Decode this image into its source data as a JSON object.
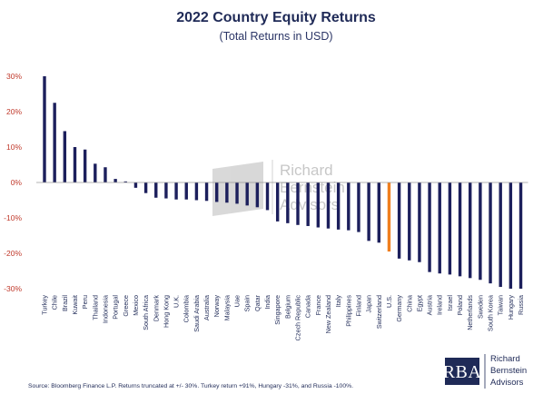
{
  "chart_data": {
    "type": "bar",
    "title": "2022 Country Equity Returns",
    "subtitle": "(Total Returns in USD)",
    "ylim": [
      -30,
      30
    ],
    "yticks": [
      "30%",
      "20%",
      "10%",
      "0%",
      "-10%",
      "-20%",
      "-30%"
    ],
    "ytick_values": [
      30,
      20,
      10,
      0,
      -10,
      -20,
      -30
    ],
    "grid": false,
    "categories": [
      "Turkey",
      "Chile",
      "Brazil",
      "Kuwait",
      "Peru",
      "Thailand",
      "Indonesia",
      "Portugal",
      "Greece",
      "Mexico",
      "South Africa",
      "Denmark",
      "Hong Kong",
      "U.K.",
      "Colombia",
      "Saudi Arabia",
      "Australia",
      "Norway",
      "Malaysia",
      "Uae",
      "Spain",
      "Qatar",
      "India",
      "Singapore",
      "Belgium",
      "Czech Republic",
      "Canada",
      "France",
      "New Zealand",
      "Italy",
      "Philippines",
      "Finland",
      "Japan",
      "Switzerland",
      "U.S.",
      "Germany",
      "China",
      "Egypt",
      "Austria",
      "Ireland",
      "Israel",
      "Poland",
      "Netherlands",
      "Sweden",
      "South Korea",
      "Taiwan",
      "Hungary",
      "Russia"
    ],
    "values": [
      30,
      22.5,
      14.5,
      10,
      9.3,
      5.3,
      4.3,
      1,
      0.3,
      -1.5,
      -3,
      -4.3,
      -4.5,
      -4.8,
      -4.8,
      -5,
      -5.2,
      -5.5,
      -5.7,
      -6,
      -6.5,
      -7,
      -7.8,
      -11,
      -11.5,
      -12,
      -12.3,
      -12.7,
      -13,
      -13.3,
      -13.5,
      -14,
      -16.5,
      -17,
      -19.5,
      -21.5,
      -22,
      -22.5,
      -25.3,
      -25.7,
      -26,
      -26.5,
      -27,
      -27.5,
      -28.5,
      -29.5,
      -30,
      -30
    ],
    "bar_color": "#1c1f5c",
    "highlight": {
      "category": "U.S.",
      "color": "#f07f1f"
    }
  },
  "source_note": "Source: Bloomberg Finance L.P. Returns truncated at +/- 30%. Turkey return +91%, Hungary -31%, and Russia -100%.",
  "watermark": {
    "line1": "Richard",
    "line2": "Bernstein",
    "line3": "Advisors"
  },
  "logo": {
    "mark": "RBA",
    "line1": "Richard",
    "line2": "Bernstein",
    "line3": "Advisors"
  }
}
